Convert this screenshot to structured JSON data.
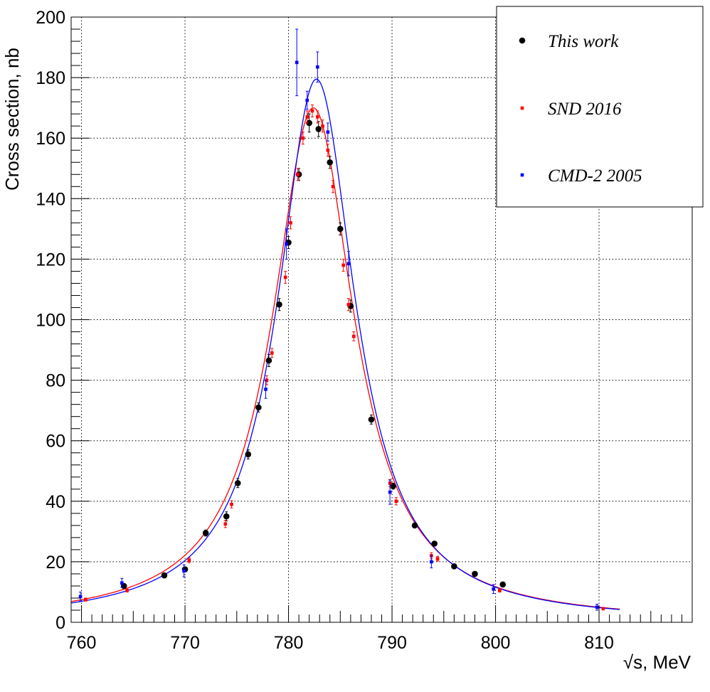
{
  "chart_data": {
    "type": "scatter",
    "xlabel": "√s, MeV",
    "ylabel": "Cross section, nb",
    "xlim": [
      759,
      819
    ],
    "ylim": [
      0,
      200
    ],
    "x_ticks": [
      "760",
      "770",
      "780",
      "790",
      "800",
      "810"
    ],
    "y_ticks": [
      "0",
      "20",
      "40",
      "60",
      "80",
      "100",
      "120",
      "140",
      "160",
      "180",
      "200"
    ],
    "grid": true,
    "legend_position": "top-right",
    "series": [
      {
        "name": "This work",
        "color": "#000000",
        "marker": "circle-large",
        "points": [
          {
            "x": 764.1,
            "y": 12,
            "err": 0.8
          },
          {
            "x": 768.0,
            "y": 15.5,
            "err": 0.8
          },
          {
            "x": 770.0,
            "y": 17.5,
            "err": 0.8
          },
          {
            "x": 772.0,
            "y": 29.5,
            "err": 1
          },
          {
            "x": 774.0,
            "y": 35,
            "err": 1.5
          },
          {
            "x": 775.1,
            "y": 46,
            "err": 1.5
          },
          {
            "x": 776.1,
            "y": 55.5,
            "err": 1.5
          },
          {
            "x": 777.1,
            "y": 71,
            "err": 1.5
          },
          {
            "x": 778.1,
            "y": 86.5,
            "err": 2
          },
          {
            "x": 779.1,
            "y": 105,
            "err": 2
          },
          {
            "x": 780.0,
            "y": 125.5,
            "err": 2
          },
          {
            "x": 781.0,
            "y": 148,
            "err": 2
          },
          {
            "x": 782.0,
            "y": 165,
            "err": 3
          },
          {
            "x": 782.9,
            "y": 163,
            "err": 2.5
          },
          {
            "x": 784.0,
            "y": 152,
            "err": 2
          },
          {
            "x": 785.0,
            "y": 130,
            "err": 2
          },
          {
            "x": 786.0,
            "y": 104.5,
            "err": 2
          },
          {
            "x": 788.0,
            "y": 67,
            "err": 1.5
          },
          {
            "x": 790.1,
            "y": 45,
            "err": 1
          },
          {
            "x": 792.2,
            "y": 32,
            "err": 0.8
          },
          {
            "x": 794.1,
            "y": 26,
            "err": 0.8
          },
          {
            "x": 796.0,
            "y": 18.5,
            "err": 0.8
          },
          {
            "x": 798.0,
            "y": 16,
            "err": 0.8
          },
          {
            "x": 800.7,
            "y": 12.5,
            "err": 0.8
          }
        ]
      },
      {
        "name": "SND 2016",
        "color": "#ff0000",
        "marker": "square-small",
        "points": [
          {
            "x": 760.4,
            "y": 7.5,
            "err": 0.5
          },
          {
            "x": 764.4,
            "y": 10.5,
            "err": 0.5
          },
          {
            "x": 770.4,
            "y": 20.5,
            "err": 0.8
          },
          {
            "x": 773.9,
            "y": 32.5,
            "err": 1.2
          },
          {
            "x": 774.5,
            "y": 39,
            "err": 1.2
          },
          {
            "x": 777.9,
            "y": 80,
            "err": 1.5
          },
          {
            "x": 778.4,
            "y": 89,
            "err": 1.5
          },
          {
            "x": 779.7,
            "y": 114,
            "err": 2
          },
          {
            "x": 780.2,
            "y": 132,
            "err": 2
          },
          {
            "x": 780.9,
            "y": 148,
            "err": 2
          },
          {
            "x": 781.4,
            "y": 160,
            "err": 2
          },
          {
            "x": 781.8,
            "y": 167,
            "err": 2
          },
          {
            "x": 782.3,
            "y": 169,
            "err": 2
          },
          {
            "x": 782.8,
            "y": 167,
            "err": 2
          },
          {
            "x": 783.3,
            "y": 164,
            "err": 2
          },
          {
            "x": 783.8,
            "y": 156,
            "err": 2
          },
          {
            "x": 784.3,
            "y": 144,
            "err": 2
          },
          {
            "x": 785.3,
            "y": 118,
            "err": 2
          },
          {
            "x": 785.8,
            "y": 105,
            "err": 2
          },
          {
            "x": 786.3,
            "y": 94.5,
            "err": 1.5
          },
          {
            "x": 789.8,
            "y": 46,
            "err": 1.2
          },
          {
            "x": 790.4,
            "y": 40,
            "err": 1.2
          },
          {
            "x": 793.8,
            "y": 22,
            "err": 1
          },
          {
            "x": 794.4,
            "y": 21,
            "err": 0.8
          },
          {
            "x": 800.4,
            "y": 10.5,
            "err": 0.5
          },
          {
            "x": 810.4,
            "y": 4.5,
            "err": 0.4
          }
        ]
      },
      {
        "name": "CMD-2 2005",
        "color": "#0000ff",
        "marker": "square-small",
        "points": [
          {
            "x": 759.9,
            "y": 8.5,
            "err": 1.5
          },
          {
            "x": 763.9,
            "y": 13,
            "err": 1.5
          },
          {
            "x": 769.9,
            "y": 17,
            "err": 2
          },
          {
            "x": 777.8,
            "y": 77,
            "err": 3
          },
          {
            "x": 779.8,
            "y": 125,
            "err": 5
          },
          {
            "x": 780.8,
            "y": 185,
            "err": 11
          },
          {
            "x": 781.8,
            "y": 172.5,
            "err": 3
          },
          {
            "x": 782.8,
            "y": 183.5,
            "err": 5
          },
          {
            "x": 783.8,
            "y": 162,
            "err": 3
          },
          {
            "x": 785.8,
            "y": 118.5,
            "err": 4
          },
          {
            "x": 789.8,
            "y": 43,
            "err": 4
          },
          {
            "x": 793.8,
            "y": 20,
            "err": 2
          },
          {
            "x": 799.8,
            "y": 11,
            "err": 1.5
          },
          {
            "x": 809.8,
            "y": 5,
            "err": 1
          }
        ]
      }
    ],
    "fit_curves": [
      {
        "color": "#ff0000",
        "x_range": [
          759,
          812
        ],
        "peak_x": 782.4,
        "peak_y": 170,
        "half_width": 4.8
      },
      {
        "color": "#0000ff",
        "x_range": [
          759,
          812
        ],
        "peak_x": 782.7,
        "peak_y": 179.5,
        "half_width": 4.55
      }
    ]
  }
}
